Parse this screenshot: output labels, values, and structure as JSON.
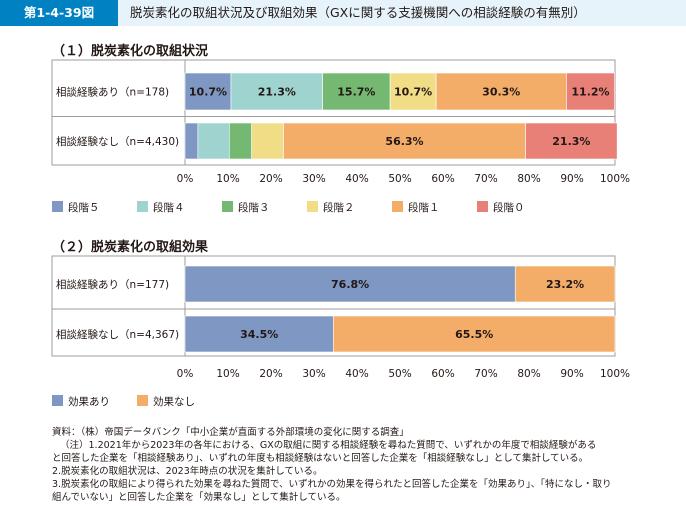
{
  "figure_number": "第1-4-39図",
  "figure_title": "脱炭素化の取組状況及び取組効果（GXに関する支援機関への相談経験の有無別）",
  "colors": {
    "header_bg": "#e6f3fa",
    "header_accent": "#0081c2",
    "level5": "#7f97c3",
    "level4": "#9fd3cf",
    "level3": "#74b871",
    "level2": "#f2dd87",
    "level1": "#f3ad69",
    "level0": "#e98077"
  },
  "chart_data": [
    {
      "type": "bar",
      "orientation": "horizontal",
      "stacked": true,
      "title": "（１）脱炭素化の取組状況",
      "categories": [
        "相談経験あり（n=178)",
        "相談経験なし（n=4,430)"
      ],
      "series": [
        {
          "name": "段階５",
          "color": "#7f97c3",
          "values": [
            10.7,
            3.0
          ],
          "labels": [
            "10.7%",
            ""
          ]
        },
        {
          "name": "段階４",
          "color": "#9fd3cf",
          "values": [
            21.3,
            7.3
          ],
          "labels": [
            "21.3%",
            ""
          ]
        },
        {
          "name": "段階３",
          "color": "#74b871",
          "values": [
            15.7,
            5.2
          ],
          "labels": [
            "15.7%",
            ""
          ]
        },
        {
          "name": "段階２",
          "color": "#f2dd87",
          "values": [
            10.7,
            7.4
          ],
          "labels": [
            "10.7%",
            ""
          ]
        },
        {
          "name": "段階１",
          "color": "#f3ad69",
          "values": [
            30.3,
            56.3
          ],
          "labels": [
            "30.3%",
            "56.3%"
          ]
        },
        {
          "name": "段階０",
          "color": "#e98077",
          "values": [
            11.2,
            21.3
          ],
          "labels": [
            "11.2%",
            "21.3%"
          ]
        }
      ],
      "xlim": [
        0,
        100
      ],
      "xticks": [
        "0%",
        "10%",
        "20%",
        "30%",
        "40%",
        "50%",
        "60%",
        "70%",
        "80%",
        "90%",
        "100%"
      ],
      "legend_position": "bottom-left"
    },
    {
      "type": "bar",
      "orientation": "horizontal",
      "stacked": true,
      "title": "（２）脱炭素化の取組効果",
      "categories": [
        "相談経験あり（n=177)",
        "相談経験なし（n=4,367)"
      ],
      "series": [
        {
          "name": "効果あり",
          "color": "#7f97c3",
          "values": [
            76.8,
            34.5
          ],
          "labels": [
            "76.8%",
            "34.5%"
          ]
        },
        {
          "name": "効果なし",
          "color": "#f3ad69",
          "values": [
            23.2,
            65.5
          ],
          "labels": [
            "23.2%",
            "65.5%"
          ]
        }
      ],
      "xlim": [
        0,
        100
      ],
      "xticks": [
        "0%",
        "10%",
        "20%",
        "30%",
        "40%",
        "50%",
        "60%",
        "70%",
        "80%",
        "90%",
        "100%"
      ],
      "legend_position": "bottom-left"
    }
  ],
  "notes": {
    "source": "資料：（株）帝国データバンク「中小企業が直面する外部環境の変化に関する調査」",
    "note1a": "（注）1.2021年から2023年の各年における、GXの取組に関する相談経験を尋ねた質問で、いずれかの年度で相談経験がある",
    "note1b": "と回答した企業を「相談経験あり」、いずれの年度も相談経験はないと回答した企業を「相談経験なし」として集計している。",
    "note2": "2.脱炭素化の取組状況は、2023年時点の状況を集計している。",
    "note3a": "3.脱炭素化の取組により得られた効果を尋ねた質問で、いずれかの効果を得られたと回答した企業を「効果あり」、「特になし・取り",
    "note3b": "組んでいない」と回答した企業を「効果なし」として集計している。"
  }
}
